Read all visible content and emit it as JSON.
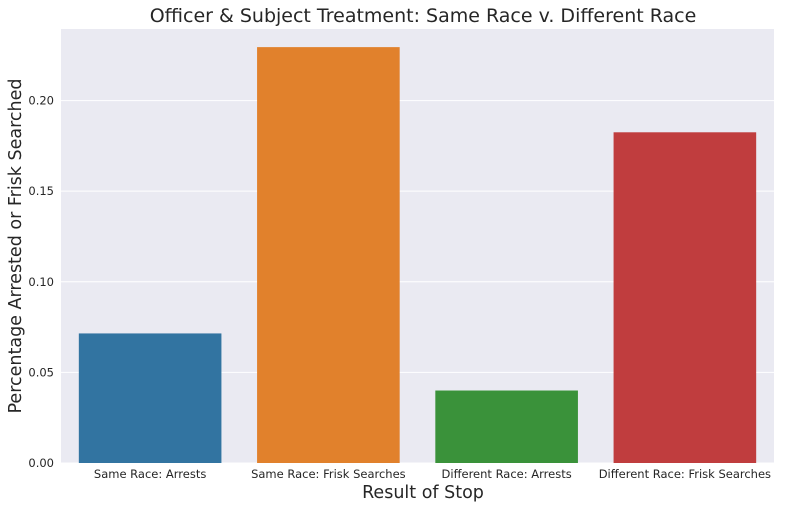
{
  "chart_data": {
    "type": "bar",
    "title": "Officer & Subject Treatment: Same Race v. Different Race",
    "xlabel": "Result of Stop",
    "ylabel": "Percentage Arrested or Frisk Searched",
    "categories": [
      "Same Race: Arrests",
      "Same Race: Frisk Searches",
      "Different Race: Arrests",
      "Different Race: Frisk Searches"
    ],
    "values": [
      0.0715,
      0.2295,
      0.04,
      0.1825
    ],
    "colors": [
      "#3274a1",
      "#e1812c",
      "#3a923a",
      "#c03d3e"
    ],
    "ylim": [
      0,
      0.2395
    ],
    "yticks": [
      "0.00",
      "0.05",
      "0.10",
      "0.15",
      "0.20"
    ],
    "grid": true,
    "background": "#eaeaf2"
  }
}
